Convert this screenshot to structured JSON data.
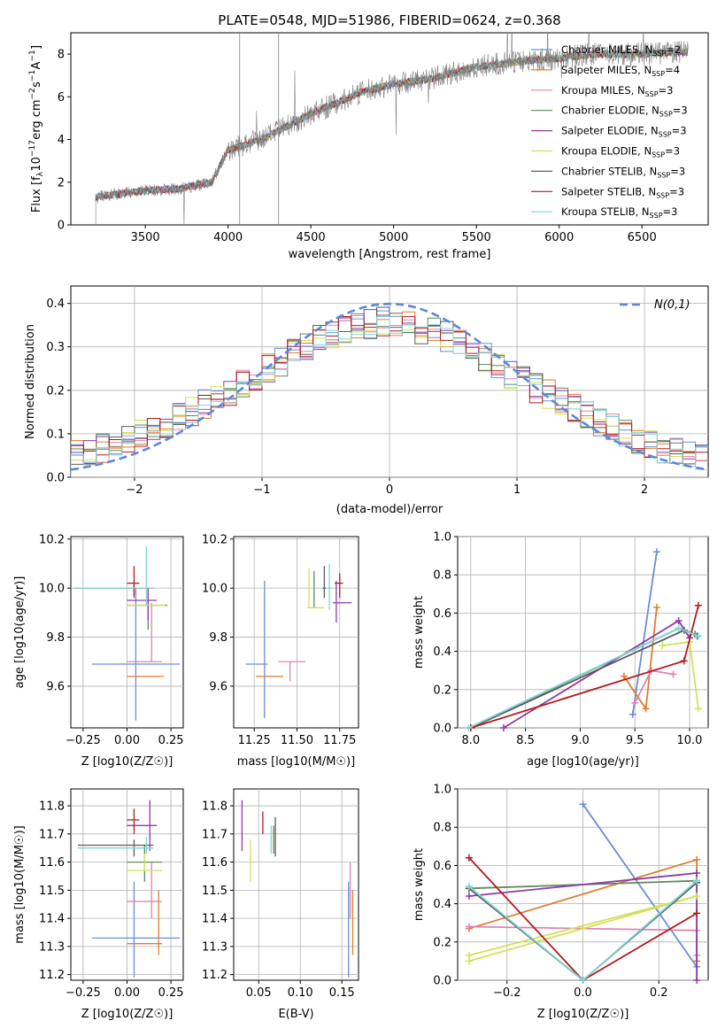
{
  "title": "PLATE=0548, MJD=51986, FIBERID=0624, z=0.368",
  "colors": [
    "#6a8ed6",
    "#e07d2c",
    "#de84b4",
    "#5c8a5c",
    "#8e3aa6",
    "#d4e05a",
    "#5b5b5b",
    "#b31b1b",
    "#80d4d8"
  ],
  "legend_ssp": [
    "Chabrier MILES, N_SSP=2",
    "Salpeter MILES, N_SSP=4",
    "Kroupa MILES, N_SSP=3",
    "Chabrier ELODIE, N_SSP=3",
    "Salpeter ELODIE, N_SSP=3",
    "Kroupa ELODIE, N_SSP=3",
    "Chabrier STELIB, N_SSP=3",
    "Salpeter STELIB, N_SSP=3",
    "Kroupa STELIB, N_SSP=3"
  ],
  "chart_data": [
    {
      "type": "line",
      "panel": "spectrum",
      "xlabel": "wavelength [Angstrom, rest frame]",
      "ylabel": "Flux [f_λ 10^-17 erg cm^-2 s^-1 A^-1]",
      "xlim": [
        3050,
        6900
      ],
      "ylim": [
        0,
        9
      ],
      "xticks": [
        3500,
        4000,
        4500,
        5000,
        5500,
        6000,
        6500
      ],
      "yticks": [
        0,
        2,
        4,
        6,
        8
      ],
      "data_range": [
        3200,
        6780
      ],
      "continuum_x": [
        3200,
        3500,
        3700,
        3900,
        4000,
        4200,
        4500,
        4800,
        5000,
        5200,
        5500,
        5800,
        6000,
        6200,
        6500,
        6780
      ],
      "continuum_y": [
        1.3,
        1.6,
        1.7,
        2.0,
        3.5,
        4.0,
        5.2,
        6.2,
        6.6,
        6.8,
        7.4,
        7.7,
        7.8,
        8.0,
        8.0,
        8.1
      ]
    },
    {
      "type": "line",
      "panel": "residual_histogram",
      "xlabel": "(data-model)/error",
      "ylabel": "Normed distribution",
      "xlim": [
        -2.5,
        2.5
      ],
      "ylim": [
        0,
        0.44
      ],
      "xticks": [
        -2,
        -1,
        0,
        1,
        2
      ],
      "yticks": [
        0.0,
        0.1,
        0.2,
        0.3,
        0.4
      ],
      "gaussian_label": "N(0,1)",
      "hist_bins": 50,
      "base_x": [
        -2.5,
        -2.0,
        -1.5,
        -1.0,
        -0.5,
        0.0,
        0.5,
        1.0,
        1.5,
        2.0,
        2.5
      ],
      "base_y": [
        0.045,
        0.09,
        0.16,
        0.24,
        0.33,
        0.36,
        0.32,
        0.23,
        0.15,
        0.08,
        0.04
      ]
    },
    {
      "type": "scatter",
      "panel": "Z_vs_age",
      "xlabel": "Z [log10(Z/Z☉)]",
      "ylabel": "age  [log10(age/yr)]",
      "xlim": [
        -0.32,
        0.32
      ],
      "ylim": [
        9.43,
        10.21
      ],
      "xticks": [
        "−0.25",
        "0.00",
        "0.25"
      ],
      "xtick_vals": [
        -0.25,
        0.0,
        0.25
      ],
      "ytick_vals": [
        9.6,
        9.8,
        10.0,
        10.2
      ]
    },
    {
      "type": "scatter",
      "panel": "mass_vs_age",
      "xlabel": "mass [log10(M/M☉)]",
      "xlim": [
        11.13,
        11.86
      ],
      "ylim": [
        9.43,
        10.21
      ],
      "xtick_vals": [
        11.25,
        11.5,
        11.75
      ],
      "ytick_vals": [
        9.6,
        9.8,
        10.0,
        10.2
      ]
    },
    {
      "type": "line",
      "panel": "age_vs_weight",
      "xlabel": "age  [log10(age/yr)]",
      "ylabel": "mass weight",
      "xlim": [
        7.88,
        10.17
      ],
      "ylim": [
        0,
        1
      ],
      "xtick_vals": [
        8.0,
        8.5,
        9.0,
        9.5,
        10.0
      ],
      "ytick_vals": [
        0.0,
        0.2,
        0.4,
        0.6,
        0.8,
        1.0
      ],
      "series": [
        {
          "x": [
            9.48,
            9.7
          ],
          "y": [
            0.07,
            0.92
          ]
        },
        {
          "x": [
            9.4,
            9.6,
            9.7
          ],
          "y": [
            0.27,
            0.1,
            0.63
          ]
        },
        {
          "x": [
            9.5,
            9.65,
            9.85
          ],
          "y": [
            0.13,
            0.3,
            0.28
          ]
        },
        {
          "x": [
            8.0,
            9.9,
            10.05
          ],
          "y": [
            0.0,
            0.52,
            0.49
          ]
        },
        {
          "x": [
            8.3,
            9.9,
            10.0
          ],
          "y": [
            0.0,
            0.56,
            0.47
          ]
        },
        {
          "x": [
            9.75,
            10.0,
            10.08
          ],
          "y": [
            0.43,
            0.45,
            0.1
          ]
        },
        {
          "x": [
            8.0,
            9.95,
            10.07
          ],
          "y": [
            0.0,
            0.51,
            0.48
          ]
        },
        {
          "x": [
            8.0,
            9.95,
            10.08
          ],
          "y": [
            0.0,
            0.35,
            0.64
          ]
        },
        {
          "x": [
            7.98,
            9.9,
            10.08
          ],
          "y": [
            0.0,
            0.52,
            0.48
          ]
        }
      ]
    },
    {
      "type": "scatter",
      "panel": "Z_vs_mass",
      "xlabel": "Z [log10(Z/Z☉)]",
      "ylabel": "mass [log10(M/M☉)]",
      "xlim": [
        -0.32,
        0.32
      ],
      "ylim": [
        11.18,
        11.86
      ],
      "xtick_vals": [
        -0.25,
        0.0,
        0.25
      ],
      "ytick_vals": [
        11.2,
        11.3,
        11.4,
        11.5,
        11.6,
        11.7,
        11.8
      ]
    },
    {
      "type": "scatter",
      "panel": "EBV_vs_mass",
      "xlabel": "E(B-V)",
      "xlim": [
        0.02,
        0.17
      ],
      "ylim": [
        11.18,
        11.86
      ],
      "xtick_vals": [
        0.05,
        0.1,
        0.15
      ],
      "ytick_vals": [
        11.2,
        11.3,
        11.4,
        11.5,
        11.6,
        11.7,
        11.8
      ]
    },
    {
      "type": "line",
      "panel": "Z_vs_weight",
      "xlabel": "Z [log10(Z/Z☉)]",
      "ylabel": "mass weight",
      "xlim": [
        -0.33,
        0.33
      ],
      "ylim": [
        0,
        1
      ],
      "xtick_vals": [
        -0.2,
        0.0,
        0.2
      ],
      "ytick_vals": [
        0.0,
        0.2,
        0.4,
        0.6,
        0.8,
        1.0
      ],
      "series": [
        {
          "x": [
            0.0,
            0.3
          ],
          "y": [
            0.92,
            0.07
          ]
        },
        {
          "x": [
            -0.3,
            0.3,
            0.3
          ],
          "y": [
            0.27,
            0.63,
            0.1
          ]
        },
        {
          "x": [
            -0.3,
            0.3,
            0.3
          ],
          "y": [
            0.28,
            0.26,
            0.13
          ]
        },
        {
          "x": [
            -0.3,
            0.3
          ],
          "y": [
            0.48,
            0.52
          ]
        },
        {
          "x": [
            -0.3,
            0.3,
            0.3
          ],
          "y": [
            0.44,
            0.56,
            0.0
          ]
        },
        {
          "x": [
            -0.3,
            0.3,
            -0.3
          ],
          "y": [
            0.1,
            0.44,
            0.13
          ]
        },
        {
          "x": [
            -0.3,
            0.0,
            0.3
          ],
          "y": [
            0.48,
            0.0,
            0.51
          ]
        },
        {
          "x": [
            -0.3,
            0.0,
            0.3
          ],
          "y": [
            0.64,
            0.0,
            0.35
          ]
        },
        {
          "x": [
            -0.3,
            0.0,
            0.3
          ],
          "y": [
            0.49,
            0.0,
            0.52
          ]
        }
      ]
    }
  ],
  "errorbars": {
    "Z_age": [
      {
        "x": 0.05,
        "xl": -0.2,
        "xh": 0.3,
        "y": 9.69,
        "yl": 9.46,
        "yh": 10.0
      },
      {
        "x": 0.1,
        "xl": 0.0,
        "xh": 0.21,
        "y": 9.64,
        "yl": 9.64,
        "yh": 9.64
      },
      {
        "x": 0.14,
        "xl": 0.0,
        "xh": 0.2,
        "y": 9.7,
        "yl": 9.7,
        "yh": 9.94
      },
      {
        "x": 0.12,
        "xl": 0.0,
        "xh": 0.23,
        "y": 9.93,
        "yl": 9.83,
        "yh": 10.0
      },
      {
        "x": 0.12,
        "xl": 0.0,
        "xh": 0.17,
        "y": 9.95,
        "yl": 9.87,
        "yh": 10.0
      },
      {
        "x": 0.13,
        "xl": 0.0,
        "xh": 0.22,
        "y": 9.93,
        "yl": 9.93,
        "yh": 9.93
      },
      {
        "x": 0.04,
        "xl": -0.3,
        "xh": 0.15,
        "y": 10.0,
        "yl": 9.96,
        "yh": 10.02
      },
      {
        "x": 0.04,
        "xl": 0.0,
        "xh": 0.07,
        "y": 10.02,
        "yl": 9.97,
        "yh": 10.09
      },
      {
        "x": 0.11,
        "xl": -0.3,
        "xh": 0.15,
        "y": 10.0,
        "yl": 9.93,
        "yh": 10.17
      }
    ],
    "mass_age": [
      {
        "x": 11.31,
        "xl": 11.2,
        "xh": 11.33,
        "y": 9.69,
        "yl": 9.47,
        "yh": 10.03
      },
      {
        "x": 11.31,
        "xl": 11.26,
        "xh": 11.42,
        "y": 9.64,
        "yl": 9.64,
        "yh": 9.64
      },
      {
        "x": 11.46,
        "xl": 11.39,
        "xh": 11.55,
        "y": 9.7,
        "yl": 9.62,
        "yh": 9.7
      },
      {
        "x": 11.6,
        "xl": 11.59,
        "xh": 11.62,
        "y": 9.92,
        "yl": 9.92,
        "yh": 10.07
      },
      {
        "x": 11.73,
        "xl": 11.71,
        "xh": 11.82,
        "y": 9.94,
        "yl": 9.86,
        "yh": 10.03
      },
      {
        "x": 11.57,
        "xl": 11.56,
        "xh": 11.66,
        "y": 9.92,
        "yl": 9.92,
        "yh": 10.08
      },
      {
        "x": 11.66,
        "xl": 11.65,
        "xh": 11.67,
        "y": 10.0,
        "yl": 9.96,
        "yh": 10.09
      },
      {
        "x": 11.75,
        "xl": 11.72,
        "xh": 11.77,
        "y": 10.02,
        "yl": 9.96,
        "yh": 10.06
      },
      {
        "x": 11.69,
        "xl": 11.68,
        "xh": 11.7,
        "y": 10.0,
        "yl": 9.91,
        "yh": 10.1
      }
    ],
    "Z_mass": [
      {
        "x": 0.04,
        "xl": -0.2,
        "xh": 0.3,
        "y": 11.33,
        "yl": 11.19,
        "yh": 11.53
      },
      {
        "x": 0.18,
        "xl": 0.0,
        "xh": 0.2,
        "y": 11.31,
        "yl": 11.27,
        "yh": 11.5
      },
      {
        "x": 0.14,
        "xl": 0.0,
        "xh": 0.2,
        "y": 11.46,
        "yl": 11.4,
        "yh": 11.6
      },
      {
        "x": 0.1,
        "xl": 0.0,
        "xh": 0.2,
        "y": 11.6,
        "yl": 11.53,
        "yh": 11.66
      },
      {
        "x": 0.13,
        "xl": 0.0,
        "xh": 0.17,
        "y": 11.73,
        "yl": 11.64,
        "yh": 11.82
      },
      {
        "x": 0.1,
        "xl": 0.0,
        "xh": 0.2,
        "y": 11.57,
        "yl": 11.57,
        "yh": 11.63
      },
      {
        "x": 0.04,
        "xl": -0.28,
        "xh": 0.15,
        "y": 11.66,
        "yl": 11.62,
        "yh": 11.68
      },
      {
        "x": 0.04,
        "xl": 0.0,
        "xh": 0.07,
        "y": 11.75,
        "yl": 11.7,
        "yh": 11.79
      },
      {
        "x": 0.11,
        "xl": -0.28,
        "xh": 0.15,
        "y": 11.65,
        "yl": 11.63,
        "yh": 11.69
      }
    ],
    "EBV_mass": [
      {
        "x": 0.158,
        "y": 11.33,
        "yl": 11.19,
        "yh": 11.53
      },
      {
        "x": 0.163,
        "y": 11.31,
        "yl": 11.27,
        "yh": 11.5
      },
      {
        "x": 0.16,
        "y": 11.46,
        "yl": 11.4,
        "yh": 11.6
      },
      {
        "x": 0.068,
        "y": 11.6,
        "yl": 11.63,
        "yh": 11.73
      },
      {
        "x": 0.03,
        "y": 11.73,
        "yl": 11.64,
        "yh": 11.82
      },
      {
        "x": 0.04,
        "y": 11.57,
        "yl": 11.53,
        "yh": 11.68
      },
      {
        "x": 0.07,
        "y": 11.66,
        "yl": 11.62,
        "yh": 11.76
      },
      {
        "x": 0.055,
        "y": 11.75,
        "yl": 11.7,
        "yh": 11.78
      },
      {
        "x": 0.065,
        "y": 11.65,
        "yl": 11.63,
        "yh": 11.73
      }
    ]
  }
}
